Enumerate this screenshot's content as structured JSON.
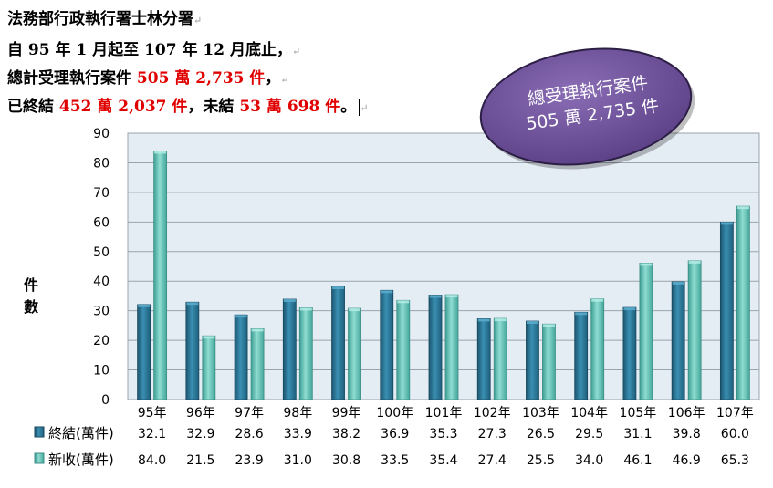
{
  "header": {
    "line1": "法務部行政執行署士林分署",
    "line2": "自 95 年 1 月起至 107 年 12 月底止，",
    "line3_prefix": "總計受理執行案件",
    "line3_red": "505 萬 2,735 件",
    "line3_suffix": "，",
    "line4_prefix": "已終結",
    "line4_red1": "452 萬 2,037 件",
    "line4_mid": "，未結",
    "line4_red2": "53 萬 698 件",
    "line4_suffix": "。"
  },
  "bubble": {
    "line1": "總受理執行案件",
    "line2": "505 萬 2,735 件"
  },
  "colors": {
    "series1": "#2a6f8e",
    "series2": "#5cbcb0",
    "plot_bg": "#e4ecf4",
    "bubble": "#6c4f97",
    "red": "#e00000"
  },
  "chart_data": {
    "type": "bar",
    "ylabel": "件數",
    "ylim": [
      0,
      90
    ],
    "yticks": [
      0,
      10,
      20,
      30,
      40,
      50,
      60,
      70,
      80,
      90
    ],
    "grid": true,
    "categories": [
      "95年",
      "96年",
      "97年",
      "98年",
      "99年",
      "100年",
      "101年",
      "102年",
      "103年",
      "104年",
      "105年",
      "106年",
      "107年"
    ],
    "series": [
      {
        "name": "終結(萬件)",
        "values": [
          32.1,
          32.9,
          28.6,
          33.9,
          38.2,
          36.9,
          35.3,
          27.3,
          26.5,
          29.5,
          31.1,
          39.8,
          60.0
        ],
        "labels": [
          "32.1",
          "32.9",
          "28.6",
          "33.9",
          "38.2",
          "36.9",
          "35.3",
          "27.3",
          "26.5",
          "29.5",
          "31.1",
          "39.8",
          "60.0"
        ]
      },
      {
        "name": "新收(萬件)",
        "values": [
          84.0,
          21.5,
          23.9,
          31.0,
          30.8,
          33.5,
          35.4,
          27.4,
          25.5,
          34.0,
          46.1,
          46.9,
          65.3
        ],
        "labels": [
          "84.0",
          "21.5",
          "23.9",
          "31.0",
          "30.8",
          "33.5",
          "35.4",
          "27.4",
          "25.5",
          "34.0",
          "46.1",
          "46.9",
          "65.3"
        ]
      }
    ]
  }
}
